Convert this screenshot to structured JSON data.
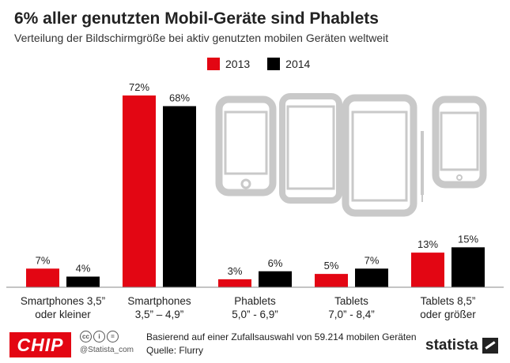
{
  "header": {
    "title": "6% aller genutzten Mobil-Geräte sind Phablets",
    "subtitle": "Verteilung der Bildschirmgröße bei aktiv genutzten mobilen Geräten weltweit"
  },
  "colors": {
    "series_2013": "#e30613",
    "series_2014": "#000000"
  },
  "chart_data": {
    "type": "bar",
    "title": "6% aller genutzten Mobil-Geräte sind Phablets",
    "subtitle": "Verteilung der Bildschirmgröße bei aktiv genutzten mobilen Geräten weltweit",
    "categories": [
      [
        "Smartphones 3,5”",
        "oder kleiner"
      ],
      [
        "Smartphones",
        "3,5” – 4,9”"
      ],
      [
        "Phablets",
        "5,0” - 6,9”"
      ],
      [
        "Tablets",
        "7,0” - 8,4”"
      ],
      [
        "Tablets  8,5”",
        "oder größer"
      ]
    ],
    "series": [
      {
        "name": "2013",
        "values": [
          7,
          72,
          3,
          5,
          13
        ]
      },
      {
        "name": "2014",
        "values": [
          4,
          68,
          6,
          7,
          15
        ]
      }
    ],
    "value_suffix": "%",
    "ylim": [
      0,
      80
    ],
    "grid": false,
    "legend": "top-center"
  },
  "footer": {
    "brand": "CHIP",
    "cc_icons": [
      "cc",
      "i",
      "="
    ],
    "statista_handle": "@Statista_com",
    "note": "Basierend auf einer Zufallsauswahl von 59.214 mobilen Geräten",
    "source": "Quelle: Flurry",
    "logo_text": "statista"
  }
}
